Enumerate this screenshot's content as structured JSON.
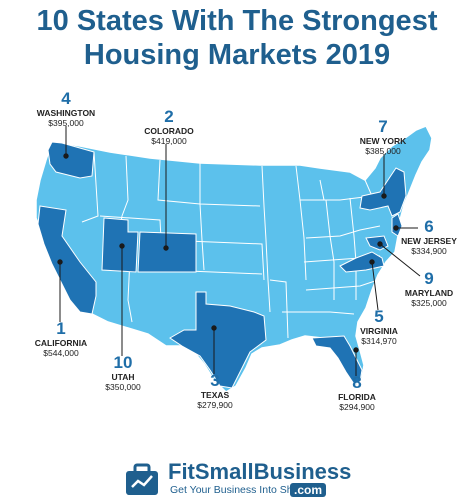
{
  "title": {
    "line1": "10 States With The Strongest",
    "line2": "Housing Markets 2019"
  },
  "colors": {
    "title": "#1f5f8e",
    "base_state": "#5cc1ec",
    "highlight_state": "#1f73b4",
    "border": "#ffffff",
    "leader_line": "#1a1a1a"
  },
  "states": [
    {
      "rank": "1",
      "name": "CALIFORNIA",
      "price": "$544,000"
    },
    {
      "rank": "2",
      "name": "COLORADO",
      "price": "$419,000"
    },
    {
      "rank": "3",
      "name": "TEXAS",
      "price": "$279,900"
    },
    {
      "rank": "4",
      "name": "WASHINGTON",
      "price": "$395,000"
    },
    {
      "rank": "5",
      "name": "VIRGINIA",
      "price": "$314,970"
    },
    {
      "rank": "6",
      "name": "NEW JERSEY",
      "price": "$334,900"
    },
    {
      "rank": "7",
      "name": "NEW YORK",
      "price": "$385,000"
    },
    {
      "rank": "8",
      "name": "FLORIDA",
      "price": "$294,900"
    },
    {
      "rank": "9",
      "name": "MARYLAND",
      "price": "$325,000"
    },
    {
      "rank": "10",
      "name": "UTAH",
      "price": "$350,000"
    }
  ],
  "logo": {
    "name": "FitSmallBusiness",
    "tagline": "Get Your Business Into Shape",
    "suffix": ".com",
    "icon": "briefcase-icon"
  }
}
